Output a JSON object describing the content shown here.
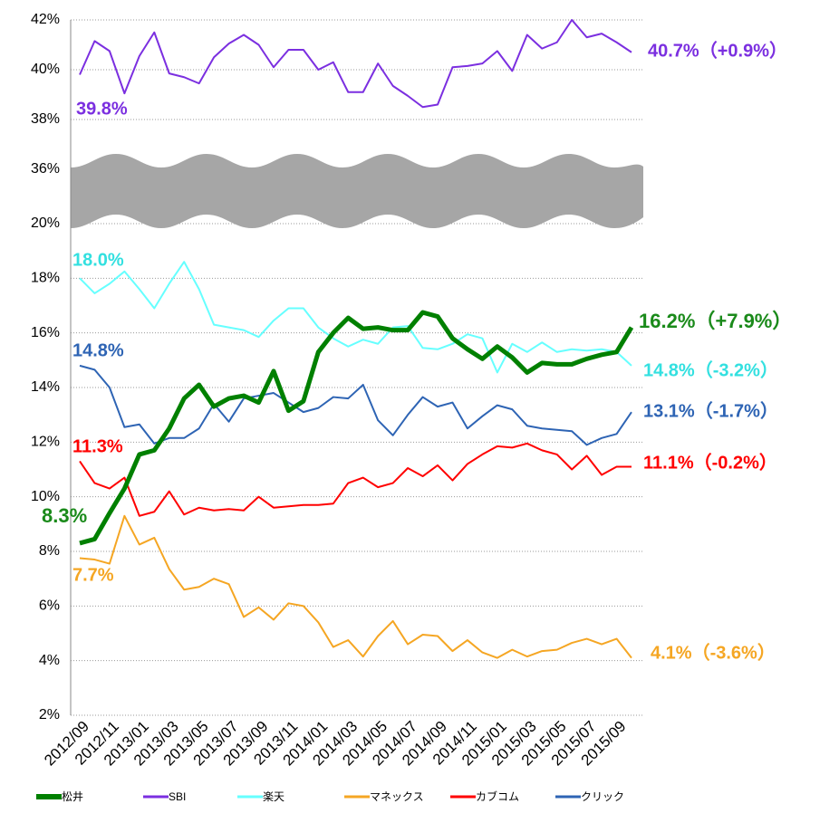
{
  "chart_data": {
    "type": "line",
    "categories": [
      "2012/09",
      null,
      "2012/11",
      null,
      "2013/01",
      null,
      "2013/03",
      null,
      "2013/05",
      null,
      "2013/07",
      null,
      "2013/09",
      null,
      "2013/11",
      null,
      "2014/01",
      null,
      "2014/03",
      null,
      "2014/05",
      null,
      "2014/07",
      null,
      "2014/09",
      null,
      "2014/11",
      null,
      "2015/01",
      null,
      "2015/03",
      null,
      "2015/05",
      null,
      "2015/07",
      null,
      "2015/09",
      null
    ],
    "ylim": [
      2,
      20
    ],
    "yticks": [
      {
        "value": 2,
        "label": "2%"
      },
      {
        "value": 4,
        "label": "4%"
      },
      {
        "value": 6,
        "label": "6%"
      },
      {
        "value": 8,
        "label": "8%"
      },
      {
        "value": 10,
        "label": "10%"
      },
      {
        "value": 12,
        "label": "12%"
      },
      {
        "value": 14,
        "label": "14%"
      },
      {
        "value": 16,
        "label": "16%"
      },
      {
        "value": 18,
        "label": "18%"
      },
      {
        "value": 20,
        "label": "20%"
      }
    ],
    "y2lim": [
      36,
      42
    ],
    "y2ticks": [
      {
        "value": 36,
        "label": "36%"
      },
      {
        "value": 38,
        "label": "38%"
      },
      {
        "value": 40,
        "label": "40%"
      },
      {
        "value": 42,
        "label": "42%"
      }
    ],
    "grid": true,
    "legend": "bottom",
    "series": [
      {
        "name": "松井",
        "color": "#008000",
        "width": 5,
        "start_label": "8.3%",
        "end_label": "16.2%（+7.9%）",
        "label_color": "#1a8a1a",
        "values": [
          8.3,
          8.45,
          9.4,
          10.3,
          11.55,
          11.7,
          12.5,
          13.6,
          14.1,
          13.3,
          13.6,
          13.7,
          13.45,
          14.6,
          13.15,
          13.5,
          15.3,
          16.0,
          16.55,
          16.15,
          16.2,
          16.1,
          16.1,
          16.75,
          16.6,
          15.8,
          15.4,
          15.05,
          15.5,
          15.1,
          14.55,
          14.9,
          14.85,
          14.85,
          15.05,
          15.2,
          15.3,
          16.2
        ]
      },
      {
        "name": "SBI",
        "color": "#7b2fe0",
        "width": 2,
        "axis": "y2",
        "start_label": "39.8%",
        "end_label": "40.7%（+0.9%）",
        "label_color": "#7b2fe0",
        "values": [
          39.8,
          41.15,
          40.75,
          39.05,
          40.55,
          41.5,
          39.85,
          39.7,
          39.45,
          40.5,
          41.05,
          41.4,
          41.0,
          40.1,
          40.8,
          40.8,
          40.0,
          40.3,
          39.1,
          39.1,
          40.25,
          39.35,
          38.95,
          38.5,
          38.6,
          40.1,
          40.15,
          40.25,
          40.75,
          39.95,
          41.4,
          40.85,
          41.1,
          42.0,
          41.3,
          41.45,
          41.1,
          40.7
        ]
      },
      {
        "name": "楽天",
        "color": "#66ffff",
        "width": 2,
        "start_label": "18.0%",
        "end_label": "14.8%（-3.2%）",
        "label_color": "#33e0e0",
        "values": [
          18.0,
          17.45,
          17.8,
          18.25,
          17.6,
          16.9,
          17.8,
          18.6,
          17.6,
          16.3,
          16.2,
          16.1,
          15.85,
          16.45,
          16.9,
          16.9,
          16.2,
          15.8,
          15.5,
          15.75,
          15.6,
          16.2,
          16.25,
          15.45,
          15.4,
          15.6,
          15.95,
          15.8,
          14.55,
          15.6,
          15.3,
          15.65,
          15.3,
          15.4,
          15.35,
          15.4,
          15.3,
          14.8
        ]
      },
      {
        "name": "マネックス",
        "color": "#f5a623",
        "width": 2,
        "start_label": "7.7%",
        "end_label": "4.1%（-3.6%）",
        "label_color": "#f5a623",
        "values": [
          7.75,
          7.7,
          7.55,
          9.3,
          8.25,
          8.5,
          7.35,
          6.6,
          6.7,
          7.0,
          6.8,
          5.6,
          5.95,
          5.5,
          6.1,
          6.0,
          5.4,
          4.5,
          4.75,
          4.15,
          4.9,
          5.45,
          4.6,
          4.95,
          4.9,
          4.35,
          4.75,
          4.3,
          4.1,
          4.4,
          4.15,
          4.35,
          4.4,
          4.65,
          4.8,
          4.6,
          4.8,
          4.1
        ]
      },
      {
        "name": "カブコム",
        "color": "#ff0000",
        "width": 2,
        "start_label": "11.3%",
        "end_label": "11.1%（-0.2%）",
        "label_color": "#ff0000",
        "values": [
          11.3,
          10.5,
          10.3,
          10.7,
          9.3,
          9.45,
          10.2,
          9.35,
          9.6,
          9.5,
          9.55,
          9.5,
          10.0,
          9.6,
          9.65,
          9.7,
          9.7,
          9.75,
          10.5,
          10.7,
          10.35,
          10.5,
          11.05,
          10.75,
          11.15,
          10.6,
          11.2,
          11.55,
          11.85,
          11.8,
          11.95,
          11.7,
          11.55,
          11.0,
          11.5,
          10.8,
          11.1,
          11.1
        ]
      },
      {
        "name": "クリック",
        "color": "#2e64b4",
        "width": 2,
        "start_label": "14.8%",
        "end_label": "13.1%（-1.7%）",
        "label_color": "#2e64b4",
        "values": [
          14.8,
          14.65,
          14.0,
          12.55,
          12.65,
          11.95,
          12.15,
          12.15,
          12.5,
          13.4,
          12.75,
          13.6,
          13.7,
          13.8,
          13.45,
          13.1,
          13.25,
          13.65,
          13.6,
          14.1,
          12.8,
          12.25,
          13.0,
          13.65,
          13.3,
          13.45,
          12.5,
          12.95,
          13.35,
          13.2,
          12.6,
          12.5,
          12.45,
          12.4,
          11.9,
          12.15,
          12.3,
          13.1
        ]
      }
    ]
  }
}
